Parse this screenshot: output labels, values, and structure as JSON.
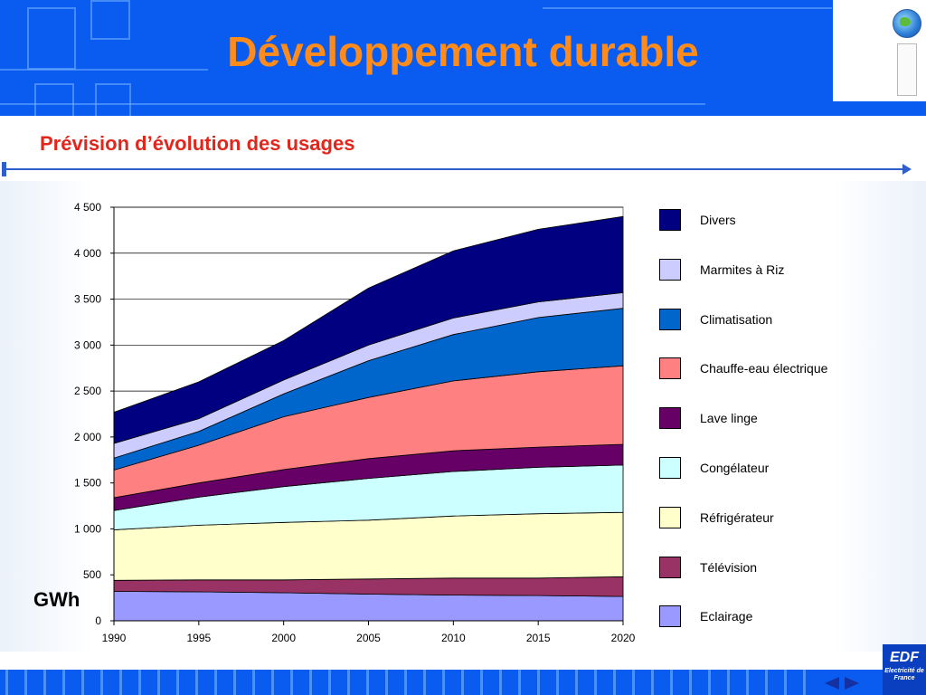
{
  "header": {
    "title": "Développement durable",
    "brand_color": "#0a5cf0",
    "title_color": "#ff8c1a",
    "globe_icon": "globe-icon",
    "document_icon": "document-icon"
  },
  "subtitle": "Prévision d’évolution des usages",
  "unit_label": "GWh",
  "chart_data": {
    "type": "area",
    "stacked": true,
    "x": [
      1990,
      1995,
      2000,
      2005,
      2010,
      2015,
      2020
    ],
    "xlim": [
      1990,
      2020
    ],
    "ylim": [
      0,
      4500
    ],
    "yticks": [
      0,
      500,
      1000,
      1500,
      2000,
      2500,
      3000,
      3500,
      4000,
      4500
    ],
    "ytick_labels": [
      "0",
      "500",
      "1 000",
      "1 500",
      "2 000",
      "2 500",
      "3 000",
      "3 500",
      "4 000",
      "4 500"
    ],
    "xtick_labels": [
      "1990",
      "1995",
      "2000",
      "2005",
      "2010",
      "2015",
      "2020"
    ],
    "grid": "horizontal",
    "legend_position": "right",
    "series": [
      {
        "name": "Eclairage",
        "color": "#9999ff",
        "values": [
          320,
          315,
          305,
          290,
          280,
          275,
          265
        ]
      },
      {
        "name": "Télévision",
        "color": "#993366",
        "values": [
          120,
          130,
          140,
          165,
          185,
          190,
          215
        ]
      },
      {
        "name": "Réfrigérateur",
        "color": "#ffffcc",
        "values": [
          550,
          595,
          625,
          640,
          675,
          700,
          700
        ]
      },
      {
        "name": "Congélateur",
        "color": "#ccffff",
        "values": [
          210,
          305,
          390,
          455,
          485,
          505,
          515
        ]
      },
      {
        "name": "Lave linge",
        "color": "#660066",
        "values": [
          140,
          155,
          185,
          215,
          225,
          220,
          225
        ]
      },
      {
        "name": "Chauffe-eau électrique",
        "color": "#ff8080",
        "values": [
          300,
          410,
          575,
          665,
          760,
          820,
          855
        ]
      },
      {
        "name": "Climatisation",
        "color": "#0066cc",
        "values": [
          130,
          150,
          250,
          400,
          505,
          590,
          625
        ]
      },
      {
        "name": "Marmites à Riz",
        "color": "#ccccff",
        "values": [
          160,
          140,
          150,
          170,
          180,
          170,
          170
        ]
      },
      {
        "name": "Divers",
        "color": "#000080",
        "values": [
          340,
          400,
          430,
          620,
          730,
          790,
          830
        ]
      }
    ],
    "legend_order": [
      "Divers",
      "Marmites à Riz",
      "Climatisation",
      "Chauffe-eau électrique",
      "Lave linge",
      "Congélateur",
      "Réfrigérateur",
      "Télévision",
      "Eclairage"
    ]
  },
  "footer": {
    "logo_text": "EDF",
    "logo_subtext": "Electricité de France",
    "nav_prev_icon": "previous-arrow-icon",
    "nav_next_icon": "next-arrow-icon"
  }
}
